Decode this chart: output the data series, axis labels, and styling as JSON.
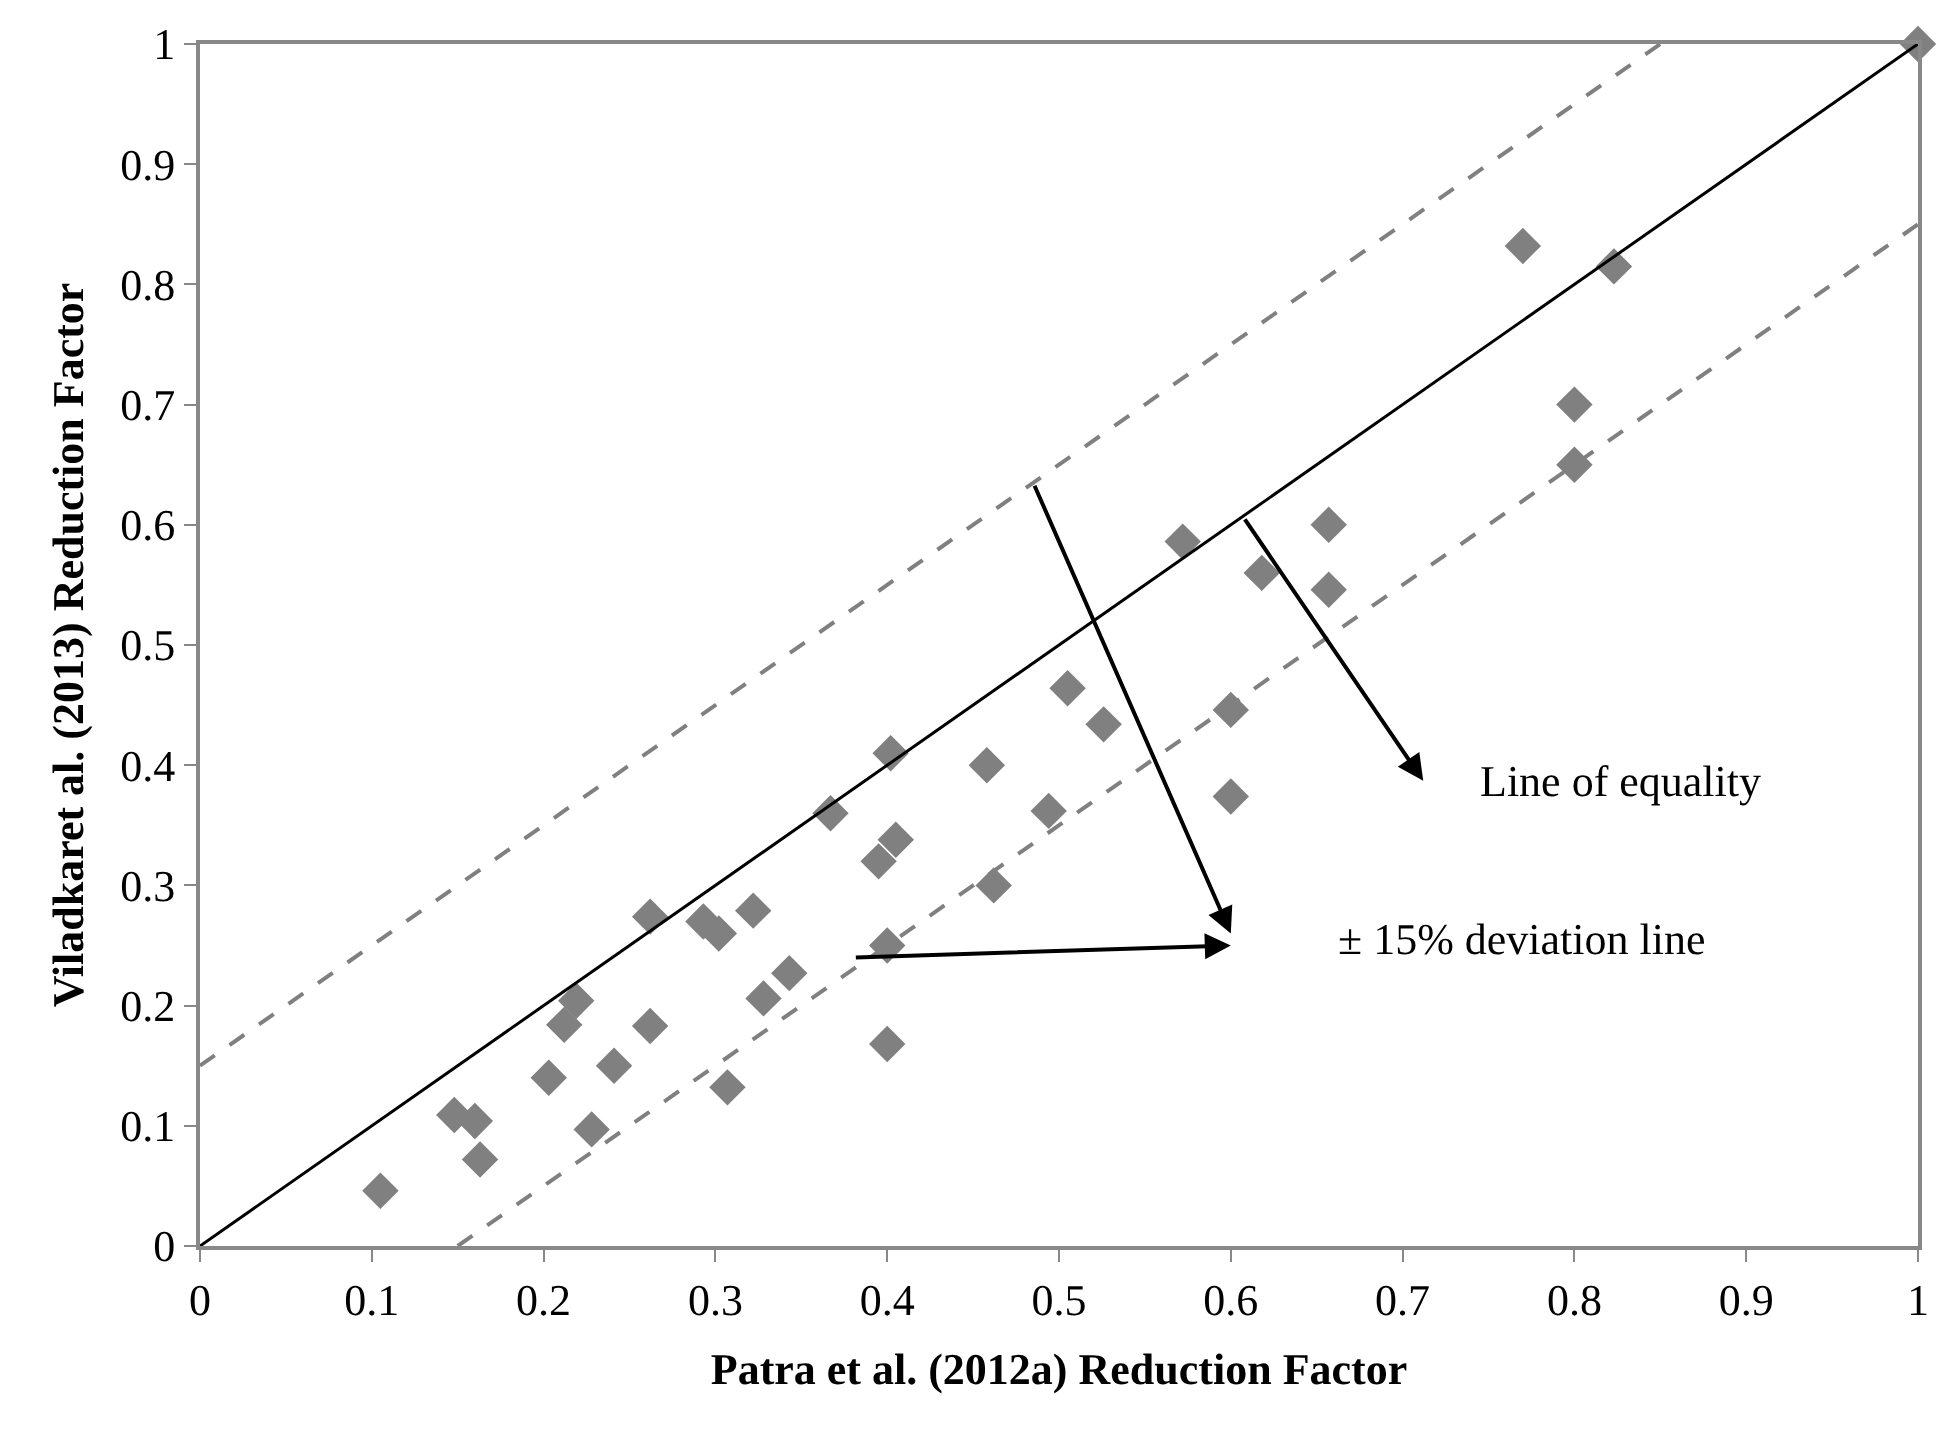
{
  "chart_data": {
    "type": "scatter",
    "xlabel": "Patra et al. (2012a) Reduction Factor",
    "ylabel": "Viladkaret al. (2013) Reduction Factor",
    "xlim": [
      0,
      1
    ],
    "ylim": [
      0,
      1
    ],
    "xticks": [
      0,
      0.1,
      0.2,
      0.3,
      0.4,
      0.5,
      0.6,
      0.7,
      0.8,
      0.9,
      1
    ],
    "yticks": [
      0,
      0.1,
      0.2,
      0.3,
      0.4,
      0.5,
      0.6,
      0.7,
      0.8,
      0.9,
      1
    ],
    "series": [
      {
        "marker": "diamond",
        "color": "#808080",
        "x": [
          0.105,
          0.148,
          0.16,
          0.163,
          0.203,
          0.212,
          0.219,
          0.228,
          0.241,
          0.262,
          0.262,
          0.293,
          0.302,
          0.307,
          0.322,
          0.328,
          0.343,
          0.367,
          0.395,
          0.4,
          0.4,
          0.402,
          0.405,
          0.458,
          0.462,
          0.494,
          0.505,
          0.526,
          0.572,
          0.6,
          0.6,
          0.618,
          0.657,
          0.657,
          0.77,
          0.8,
          0.8,
          0.823,
          1.0
        ],
        "values": [
          0.046,
          0.109,
          0.104,
          0.072,
          0.14,
          0.184,
          0.204,
          0.097,
          0.15,
          0.274,
          0.183,
          0.27,
          0.26,
          0.132,
          0.279,
          0.206,
          0.227,
          0.36,
          0.32,
          0.25,
          0.168,
          0.41,
          0.338,
          0.4,
          0.3,
          0.362,
          0.464,
          0.434,
          0.586,
          0.446,
          0.374,
          0.56,
          0.6,
          0.546,
          0.832,
          0.7,
          0.65,
          0.815,
          1.0
        ]
      },
      {
        "type": "line",
        "color": "#000000",
        "line_style": "solid",
        "marker": "none",
        "x": [
          0,
          1
        ],
        "values": [
          0,
          1
        ]
      },
      {
        "type": "line",
        "color": "#808080",
        "line_style": "dashed",
        "marker": "none",
        "x": [
          0,
          0.85
        ],
        "values": [
          0.15,
          1
        ]
      },
      {
        "type": "line",
        "color": "#808080",
        "line_style": "dashed",
        "marker": "none",
        "x": [
          0.15,
          1
        ],
        "values": [
          0,
          0.85
        ]
      }
    ],
    "annotations": [
      {
        "text": "Line of equality",
        "x": 0.607,
        "y": 0.607
      },
      "± 15% deviation line"
    ]
  }
}
